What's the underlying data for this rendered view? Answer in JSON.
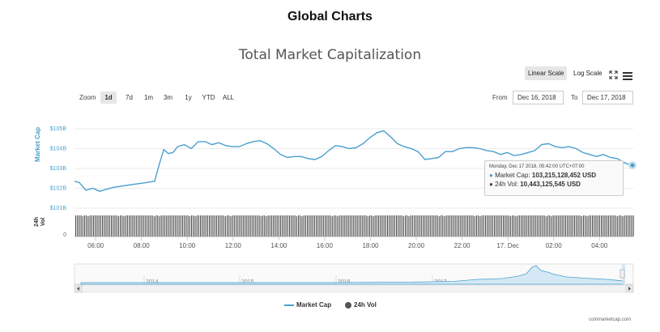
{
  "page_title": "Global Charts",
  "chart_title": "Total Market Capitalization",
  "toolbar": {
    "linear_label": "Linear Scale",
    "log_label": "Log Scale",
    "expand_icon": "expand-icon",
    "menu_icon": "hamburger-menu-icon"
  },
  "zoom": {
    "label": "Zoom",
    "buttons": [
      "1d",
      "7d",
      "1m",
      "3m",
      "1y",
      "YTD",
      "ALL"
    ],
    "active": "1d"
  },
  "range": {
    "from_label": "From",
    "from_value": "Dec 16, 2018",
    "to_label": "To",
    "to_value": "Dec 17, 2018"
  },
  "tooltip": {
    "header": "Monday, Dec 17 2018, 05:42:00 UTC+07:00",
    "mcap_label": "Market Cap:",
    "mcap_value": "103,215,128,452 USD",
    "vol_label": "24h Vol:",
    "vol_value": "10,443,125,545 USD"
  },
  "legend": {
    "mcap": "Market Cap",
    "vol": "24h Vol"
  },
  "credit": "coinmarketcap.com",
  "colors": {
    "line": "#4a9fcd",
    "volume": "#4a4a4a",
    "active_bg": "#e6e6e6"
  },
  "chart_data": {
    "type": "line",
    "x_ticks": [
      "06:00",
      "08:00",
      "10:00",
      "12:00",
      "14:00",
      "16:00",
      "18:00",
      "20:00",
      "22:00",
      "17. Dec",
      "02:00",
      "04:00"
    ],
    "y_ticks": [
      "$105B",
      "$104B",
      "$103B",
      "$102B",
      "$101B"
    ],
    "ylabel": "Market Cap",
    "ylim": [
      101,
      105.5
    ],
    "series": [
      {
        "name": "Market Cap",
        "x": [
          5.5,
          5.7,
          6.0,
          6.3,
          6.6,
          6.9,
          7.2,
          7.5,
          7.8,
          8.1,
          8.4,
          8.7,
          9.0,
          9.2,
          9.4,
          9.6,
          9.8,
          10.0,
          10.3,
          10.6,
          10.9,
          11.2,
          11.5,
          11.8,
          12.1,
          12.4,
          12.7,
          13.0,
          13.3,
          13.6,
          13.9,
          14.2,
          14.5,
          14.8,
          15.1,
          15.4,
          15.7,
          16.0,
          16.3,
          16.6,
          16.9,
          17.2,
          17.5,
          17.8,
          18.1,
          18.4,
          18.7,
          19.0,
          19.3,
          19.6,
          19.9,
          20.2,
          20.5,
          20.8,
          21.1,
          21.4,
          21.7,
          22.0,
          22.3,
          22.6,
          22.9,
          23.2,
          23.5,
          23.8,
          24.1,
          24.4,
          24.7,
          25.0,
          25.3,
          25.6,
          25.9,
          26.2,
          26.5,
          26.8,
          27.1,
          27.4,
          27.7,
          28.0,
          28.3,
          28.6,
          28.9,
          29.2,
          29.5,
          29.7
        ],
        "values": [
          102.35,
          102.3,
          101.9,
          102.0,
          101.85,
          101.95,
          102.05,
          102.1,
          102.15,
          102.2,
          102.25,
          102.3,
          102.35,
          103.2,
          103.95,
          103.75,
          103.8,
          104.1,
          104.2,
          104.0,
          104.35,
          104.35,
          104.2,
          104.3,
          104.15,
          104.1,
          104.1,
          104.25,
          104.35,
          104.4,
          104.25,
          104.0,
          103.7,
          103.55,
          103.6,
          103.6,
          103.5,
          103.45,
          103.6,
          103.9,
          104.15,
          104.1,
          104.0,
          104.05,
          104.25,
          104.55,
          104.8,
          104.9,
          104.6,
          104.25,
          104.1,
          104.0,
          103.85,
          103.45,
          103.5,
          103.55,
          103.85,
          103.85,
          104.0,
          104.05,
          104.05,
          104.0,
          103.9,
          103.85,
          103.7,
          103.8,
          103.65,
          103.7,
          103.8,
          103.9,
          104.2,
          104.25,
          104.1,
          104.05,
          104.1,
          104.0,
          103.8,
          103.7,
          103.6,
          103.7,
          103.55,
          103.5,
          103.3,
          103.2
        ]
      },
      {
        "name": "24h Vol",
        "type": "column",
        "note": "dense volume bars, roughly constant"
      }
    ],
    "navigator": {
      "x_ticks": [
        "2014",
        "2015",
        "2016",
        "2017",
        "2018"
      ]
    }
  }
}
